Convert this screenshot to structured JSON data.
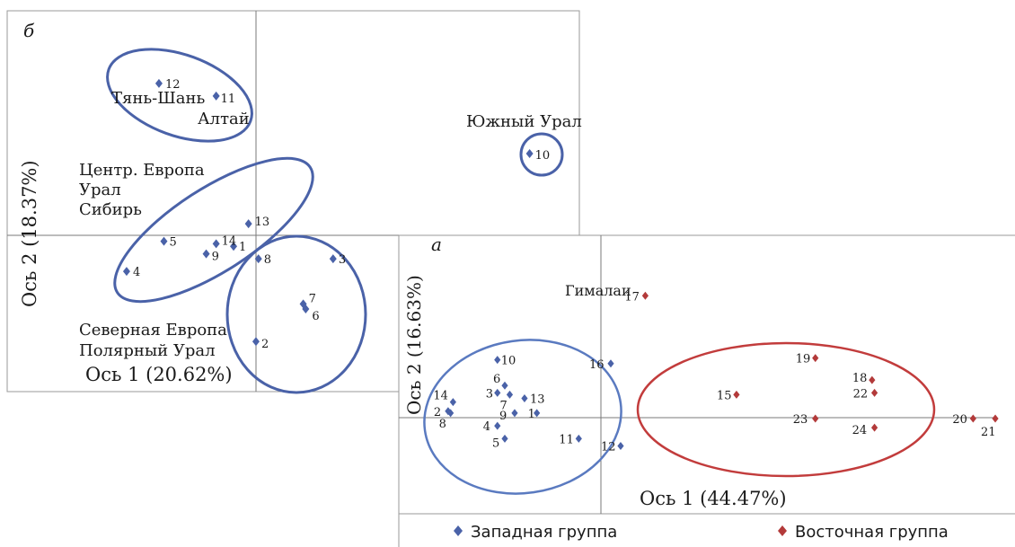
{
  "colors": {
    "western": "#4a62a8",
    "eastern": "#b33a3a",
    "frame": "#9a9a9a",
    "text": "#1a1a1a"
  },
  "legend": {
    "western": "Западная группа",
    "eastern": "Восточная группа"
  },
  "chart_data": [
    {
      "type": "scatter",
      "panel_label": "б",
      "xlabel": "Ось 1 (20.62%)",
      "ylabel": "Ось 2 (18.37%)",
      "xlim": [
        -1.0,
        1.3
      ],
      "ylim": [
        -0.62,
        0.9
      ],
      "points": [
        {
          "label": "1",
          "x": -0.09,
          "y": -0.04
        },
        {
          "label": "2",
          "x": 0.0,
          "y": -0.42
        },
        {
          "label": "3",
          "x": 0.31,
          "y": -0.09
        },
        {
          "label": "4",
          "x": -0.52,
          "y": -0.14
        },
        {
          "label": "5",
          "x": -0.37,
          "y": -0.02
        },
        {
          "label": "6",
          "x": 0.2,
          "y": -0.29
        },
        {
          "label": "7",
          "x": 0.19,
          "y": -0.27
        },
        {
          "label": "8",
          "x": 0.01,
          "y": -0.09
        },
        {
          "label": "9",
          "x": -0.2,
          "y": -0.07
        },
        {
          "label": "13",
          "x": -0.03,
          "y": 0.05
        },
        {
          "label": "14",
          "x": -0.16,
          "y": -0.03
        },
        {
          "label": "11",
          "x": -0.16,
          "y": 0.56
        },
        {
          "label": "12",
          "x": -0.39,
          "y": 0.61
        },
        {
          "label": "10",
          "x": 1.1,
          "y": 0.33
        }
      ],
      "annotations": [
        "Тянь-Шань",
        "Алтай",
        "Южный Урал",
        "Центр. Европа",
        "Урал",
        "Сибирь",
        "Северная Европа",
        "Полярный Урал"
      ]
    },
    {
      "type": "scatter",
      "panel_label": "а",
      "xlabel": "Ось 1 (44.47%)",
      "ylabel": "Ось 2 (16.63%)",
      "xlim": [
        -1.0,
        1.5
      ],
      "ylim": [
        -0.62,
        0.9
      ],
      "series": [
        {
          "name": "Западная группа",
          "points": [
            {
              "label": "1",
              "x": -0.44,
              "y": -0.07
            },
            {
              "label": "2",
              "x": -0.8,
              "y": -0.06
            },
            {
              "label": "3",
              "x": -0.6,
              "y": 0.04
            },
            {
              "label": "4",
              "x": -0.6,
              "y": -0.14
            },
            {
              "label": "5",
              "x": -0.57,
              "y": -0.21
            },
            {
              "label": "6",
              "x": -0.57,
              "y": 0.08
            },
            {
              "label": "7",
              "x": -0.55,
              "y": 0.03
            },
            {
              "label": "8",
              "x": -0.79,
              "y": -0.07
            },
            {
              "label": "9",
              "x": -0.53,
              "y": -0.07
            },
            {
              "label": "10",
              "x": -0.6,
              "y": 0.22
            },
            {
              "label": "11",
              "x": -0.27,
              "y": -0.21
            },
            {
              "label": "12",
              "x": -0.1,
              "y": -0.25
            },
            {
              "label": "13",
              "x": -0.49,
              "y": 0.01
            },
            {
              "label": "14",
              "x": -0.78,
              "y": -0.01
            },
            {
              "label": "16",
              "x": -0.14,
              "y": 0.2
            }
          ]
        },
        {
          "name": "Восточная группа",
          "points": [
            {
              "label": "15",
              "x": 0.37,
              "y": 0.03
            },
            {
              "label": "17",
              "x": 0.0,
              "y": 0.57
            },
            {
              "label": "18",
              "x": 0.92,
              "y": 0.11
            },
            {
              "label": "19",
              "x": 0.69,
              "y": 0.23
            },
            {
              "label": "20",
              "x": 1.33,
              "y": -0.1
            },
            {
              "label": "21",
              "x": 1.42,
              "y": -0.1
            },
            {
              "label": "22",
              "x": 0.93,
              "y": 0.04
            },
            {
              "label": "23",
              "x": 0.69,
              "y": -0.1
            },
            {
              "label": "24",
              "x": 0.93,
              "y": -0.15
            }
          ]
        }
      ],
      "annotations": [
        "Гималаи"
      ]
    }
  ]
}
